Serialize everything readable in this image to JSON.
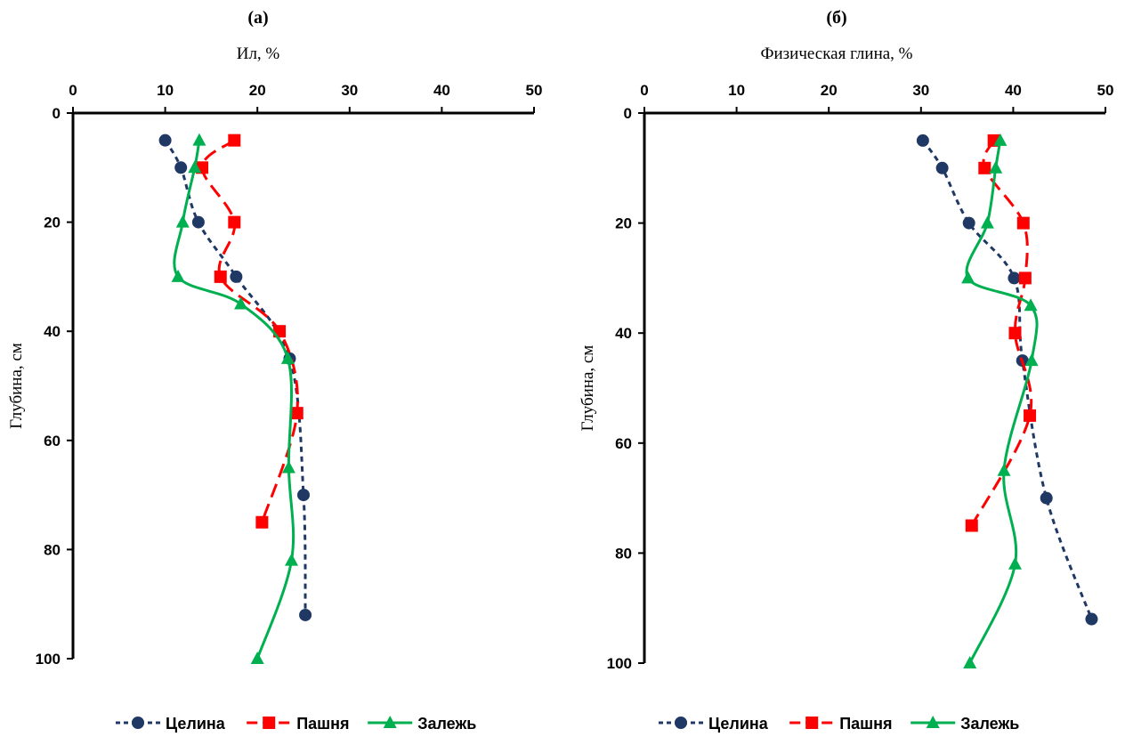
{
  "chart_data": [
    {
      "type": "line",
      "title": "(а)",
      "xlabel": "Ил, %",
      "ylabel": "Глубина, см",
      "x_axis_position": "top",
      "y_axis_inverted": true,
      "xlim": [
        0,
        50
      ],
      "ylim": [
        0,
        100
      ],
      "x_ticks": [
        "0",
        "10",
        "20",
        "30",
        "40",
        "50"
      ],
      "y_ticks": [
        "0",
        "20",
        "40",
        "60",
        "80",
        "100"
      ],
      "grid": false,
      "legend_position": "bottom",
      "series": [
        {
          "name": "Целина",
          "color": "#1f3864",
          "line": "dashed",
          "marker": "circle",
          "smooth": true,
          "points": [
            [
              10,
              5
            ],
            [
              11.7,
              10
            ],
            [
              13.6,
              20
            ],
            [
              17.7,
              30
            ],
            [
              23.5,
              45
            ],
            [
              25,
              70
            ],
            [
              25.2,
              92
            ]
          ]
        },
        {
          "name": "Пашня",
          "color": "#ff0000",
          "line": "longdash",
          "marker": "square",
          "smooth": true,
          "points": [
            [
              17.5,
              5
            ],
            [
              14,
              10
            ],
            [
              17.5,
              20
            ],
            [
              16,
              30
            ],
            [
              22.4,
              40
            ],
            [
              24.3,
              55
            ],
            [
              20.5,
              75
            ]
          ]
        },
        {
          "name": "Залежь",
          "color": "#00b050",
          "line": "solid",
          "marker": "triangle",
          "smooth": true,
          "points": [
            [
              13.7,
              5
            ],
            [
              13.2,
              10
            ],
            [
              11.9,
              20
            ],
            [
              11.4,
              30
            ],
            [
              18.2,
              35
            ],
            [
              23.3,
              45
            ],
            [
              23.4,
              65
            ],
            [
              23.7,
              82
            ],
            [
              20,
              100
            ]
          ]
        }
      ]
    },
    {
      "type": "line",
      "title": "(б)",
      "xlabel": "Физическая глина, %",
      "ylabel": "Глубина, см",
      "x_axis_position": "top",
      "y_axis_inverted": true,
      "xlim": [
        0,
        50
      ],
      "ylim": [
        0,
        100
      ],
      "x_ticks": [
        "0",
        "10",
        "20",
        "30",
        "40",
        "50"
      ],
      "y_ticks": [
        "0",
        "20",
        "40",
        "60",
        "80",
        "100"
      ],
      "grid": false,
      "legend_position": "bottom",
      "series": [
        {
          "name": "Целина",
          "color": "#1f3864",
          "line": "dashed",
          "marker": "circle",
          "smooth": true,
          "points": [
            [
              30.2,
              5
            ],
            [
              32.3,
              10
            ],
            [
              35.2,
              20
            ],
            [
              40.1,
              30
            ],
            [
              41,
              45
            ],
            [
              43.6,
              70
            ],
            [
              48.5,
              92
            ]
          ]
        },
        {
          "name": "Пашня",
          "color": "#ff0000",
          "line": "longdash",
          "marker": "square",
          "smooth": true,
          "points": [
            [
              37.9,
              5
            ],
            [
              36.9,
              10
            ],
            [
              41.1,
              20
            ],
            [
              41.3,
              30
            ],
            [
              40.2,
              40
            ],
            [
              41.8,
              55
            ],
            [
              35.5,
              75
            ]
          ]
        },
        {
          "name": "Залежь",
          "color": "#00b050",
          "line": "solid",
          "marker": "triangle",
          "smooth": true,
          "points": [
            [
              38.6,
              5
            ],
            [
              38.1,
              10
            ],
            [
              37.2,
              20
            ],
            [
              35.1,
              30
            ],
            [
              41.9,
              35
            ],
            [
              42,
              45
            ],
            [
              39,
              65
            ],
            [
              40.2,
              82
            ],
            [
              35.3,
              100
            ]
          ]
        }
      ]
    }
  ]
}
